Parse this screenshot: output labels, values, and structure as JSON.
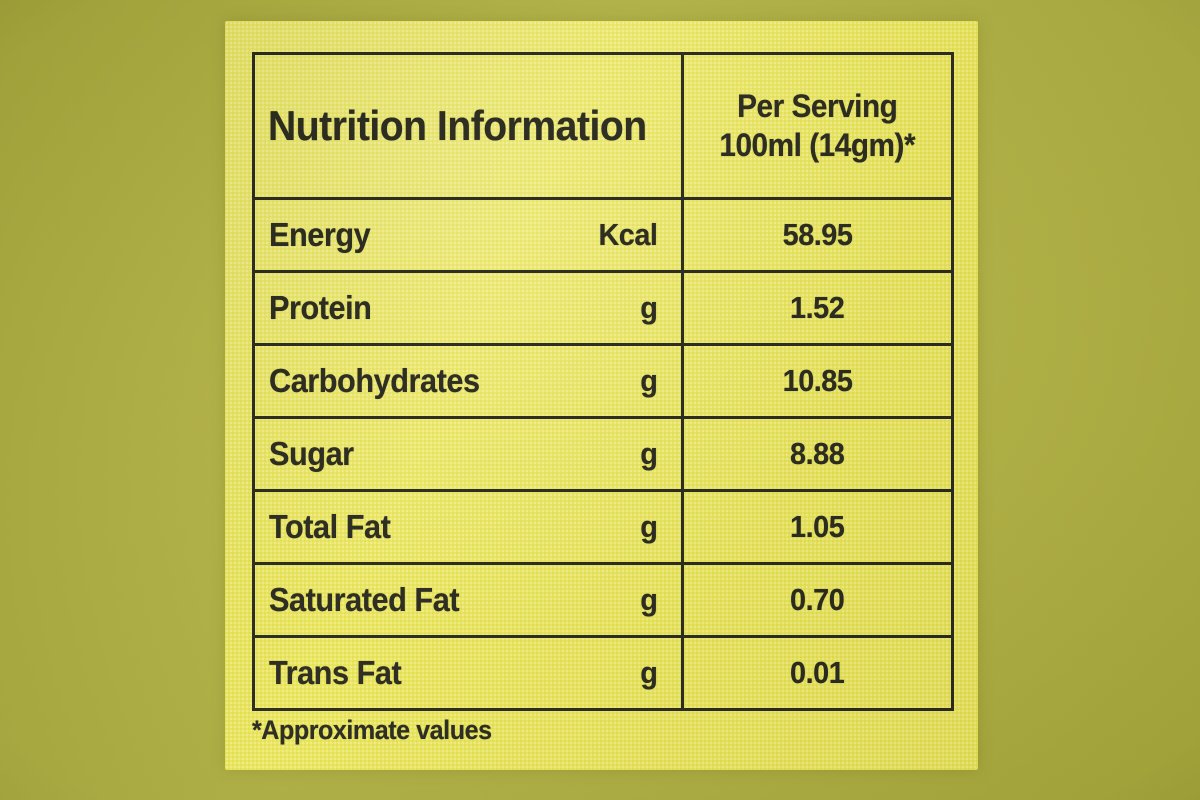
{
  "label": {
    "header": {
      "title": "Nutrition Information",
      "serving_line1": "Per Serving",
      "serving_line2": "100ml (14gm)*"
    },
    "columns": [
      "Nutrition Information",
      "Per Serving 100ml (14gm)*"
    ],
    "rows": [
      {
        "name": "Energy",
        "unit": "Kcal",
        "value": "58.95"
      },
      {
        "name": "Protein",
        "unit": "g",
        "value": "1.52"
      },
      {
        "name": "Carbohydrates",
        "unit": "g",
        "value": "10.85"
      },
      {
        "name": "Sugar",
        "unit": "g",
        "value": "8.88"
      },
      {
        "name": "Total Fat",
        "unit": "g",
        "value": "1.05"
      },
      {
        "name": "Saturated Fat",
        "unit": "g",
        "value": "0.70"
      },
      {
        "name": "Trans Fat",
        "unit": "g",
        "value": "0.01"
      }
    ],
    "footnote": "*Approximate values",
    "colors": {
      "outer_background": "#b1b23b",
      "label_background": "#e9e557",
      "ink": "#24241a"
    }
  }
}
